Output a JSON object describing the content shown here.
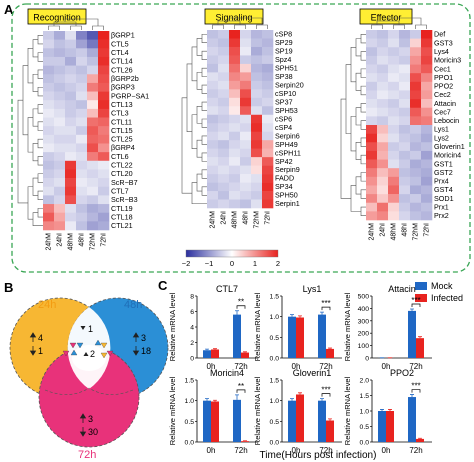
{
  "panel_labels": {
    "a": "A",
    "b": "B",
    "c": "C"
  },
  "heatmaps": {
    "conditions": [
      "24hM",
      "24hI",
      "48hM",
      "48hI",
      "72hM",
      "72hI"
    ],
    "recognition": {
      "title": "Recognition",
      "genes": [
        "βGRP1",
        "CTL5",
        "CTL4",
        "CTL14",
        "CTL26",
        "βGRP2b",
        "βGRP3",
        "PGRP−SA1",
        "CTL13",
        "CTL3",
        "CTL11",
        "CTL15",
        "CTL25",
        "βGRP4",
        "CTL6",
        "CTL22",
        "CTL20",
        "ScR−B7",
        "CTL7",
        "ScR−B3",
        "CTL19",
        "CTL18",
        "CTL21"
      ],
      "values": [
        [
          -0.5,
          -0.8,
          -0.3,
          -1.2,
          -1.6,
          2.0
        ],
        [
          -0.4,
          -0.6,
          -0.5,
          -0.9,
          -1.3,
          1.9
        ],
        [
          -0.6,
          -0.7,
          -0.6,
          -0.5,
          -0.8,
          1.8
        ],
        [
          -0.5,
          -0.5,
          -0.8,
          -0.4,
          -0.6,
          1.9
        ],
        [
          -0.7,
          -0.6,
          -0.5,
          -0.6,
          -0.4,
          1.7
        ],
        [
          -0.6,
          -0.5,
          -0.4,
          -0.5,
          0.8,
          1.6
        ],
        [
          -0.5,
          -0.6,
          -0.5,
          -0.4,
          1.2,
          1.5
        ],
        [
          -0.4,
          -0.5,
          -0.6,
          -0.3,
          0.6,
          1.8
        ],
        [
          -0.3,
          -0.4,
          -0.5,
          -0.6,
          0.2,
          1.9
        ],
        [
          -0.2,
          -0.3,
          -0.5,
          -0.4,
          0.6,
          1.7
        ],
        [
          -0.3,
          -0.2,
          -0.4,
          -0.3,
          1.3,
          1.4
        ],
        [
          -0.4,
          -0.3,
          -0.3,
          -0.5,
          1.5,
          1.2
        ],
        [
          -0.3,
          -0.4,
          -0.4,
          -0.2,
          1.4,
          1.3
        ],
        [
          -0.2,
          -0.3,
          -0.3,
          -0.4,
          1.6,
          1.0
        ],
        [
          -0.5,
          -0.4,
          -0.2,
          -0.3,
          1.2,
          1.5
        ],
        [
          -0.6,
          -0.5,
          1.8,
          -0.4,
          -0.3,
          -0.2
        ],
        [
          -0.5,
          -0.4,
          1.9,
          -0.3,
          -0.4,
          -0.3
        ],
        [
          -0.4,
          -0.3,
          1.7,
          -0.2,
          -0.3,
          -0.4
        ],
        [
          -0.3,
          -0.5,
          1.8,
          -0.3,
          -0.2,
          -0.5
        ],
        [
          -0.6,
          -0.4,
          1.6,
          -0.4,
          -0.5,
          -0.3
        ],
        [
          1.2,
          0.6,
          -0.3,
          -0.6,
          -0.8,
          -0.7
        ],
        [
          1.5,
          0.8,
          -0.4,
          -0.5,
          -0.7,
          -0.9
        ],
        [
          1.1,
          1.0,
          -0.2,
          -0.6,
          -0.9,
          -0.8
        ]
      ]
    },
    "signaling": {
      "title": "Signaling",
      "genes": [
        "cSP8",
        "SP29",
        "SP19",
        "Spz4",
        "SPH51",
        "SP38",
        "Serpin20",
        "cSP10",
        "SP37",
        "SPH53",
        "cSP6",
        "cSP4",
        "Serpin6",
        "SPH49",
        "cSPH11",
        "SP42",
        "Serpin9",
        "FADD",
        "SP34",
        "SPH50",
        "Serpin1"
      ],
      "values": [
        [
          -0.6,
          -0.5,
          2.0,
          -0.4,
          -0.7,
          -0.6
        ],
        [
          -0.5,
          -0.6,
          1.8,
          -0.3,
          -0.6,
          -0.7
        ],
        [
          -0.4,
          -0.5,
          1.6,
          -0.2,
          -0.8,
          -0.6
        ],
        [
          -0.5,
          -0.4,
          1.5,
          -0.5,
          -0.6,
          -0.5
        ],
        [
          -0.6,
          -0.3,
          1.3,
          0.4,
          -0.7,
          -0.8
        ],
        [
          -0.3,
          -0.4,
          1.1,
          0.9,
          -0.6,
          -0.7
        ],
        [
          -0.4,
          -0.3,
          0.9,
          1.2,
          -0.5,
          -0.6
        ],
        [
          -0.5,
          -0.4,
          0.6,
          1.6,
          -0.4,
          -0.5
        ],
        [
          -0.4,
          -0.5,
          0.3,
          1.8,
          -0.5,
          -0.4
        ],
        [
          -0.3,
          -0.4,
          0.2,
          1.5,
          -0.3,
          -0.6
        ],
        [
          -0.6,
          -0.5,
          -0.4,
          -0.3,
          1.8,
          -0.2
        ],
        [
          -0.5,
          -0.4,
          -0.3,
          -0.4,
          1.9,
          -0.3
        ],
        [
          -0.4,
          -0.3,
          -0.5,
          -0.2,
          1.7,
          -0.4
        ],
        [
          -0.5,
          -0.6,
          -0.4,
          -0.3,
          1.8,
          0.8
        ],
        [
          -0.4,
          -0.5,
          -0.3,
          -0.4,
          1.6,
          0.7
        ],
        [
          -0.3,
          -0.4,
          -0.2,
          -0.5,
          0.4,
          1.5
        ],
        [
          -0.4,
          -0.3,
          -0.4,
          -0.3,
          0.3,
          1.7
        ],
        [
          -0.5,
          -0.4,
          -0.5,
          -0.2,
          -0.3,
          1.8
        ],
        [
          -0.6,
          -0.5,
          -0.4,
          -0.3,
          -0.4,
          1.9
        ],
        [
          -0.4,
          -0.6,
          -0.3,
          -0.4,
          -0.5,
          1.7
        ],
        [
          -0.5,
          -0.4,
          -0.5,
          -0.6,
          -0.3,
          1.8
        ]
      ]
    },
    "effector": {
      "title": "Effector",
      "genes": [
        "Def",
        "GST3",
        "Lys4",
        "Moricin3",
        "Cec1",
        "PPO1",
        "PPO2",
        "Cec2",
        "Attacin",
        "Cec7",
        "Lebocin",
        "Lys1",
        "Lys2",
        "Gloverin1",
        "Moricin4",
        "GST1",
        "GST2",
        "Prx4",
        "GST4",
        "SOD1",
        "Prx1",
        "Prx2"
      ],
      "values": [
        [
          -0.5,
          -0.6,
          -0.4,
          -0.7,
          -0.5,
          2.0
        ],
        [
          -0.4,
          -0.5,
          -0.3,
          -0.6,
          0.4,
          1.8
        ],
        [
          -0.6,
          -0.4,
          -0.5,
          -0.4,
          0.8,
          1.6
        ],
        [
          -0.5,
          -0.3,
          -0.4,
          -0.5,
          1.0,
          1.7
        ],
        [
          -0.4,
          -0.5,
          -0.3,
          -0.2,
          1.2,
          1.5
        ],
        [
          -0.3,
          -0.4,
          -0.2,
          -0.3,
          1.6,
          1.1
        ],
        [
          -0.5,
          -0.3,
          -0.4,
          -0.2,
          1.8,
          0.8
        ],
        [
          -0.4,
          -0.2,
          -0.3,
          -0.4,
          1.7,
          0.9
        ],
        [
          -0.3,
          -0.4,
          -0.5,
          -0.3,
          1.9,
          0.6
        ],
        [
          -0.2,
          -0.3,
          -0.4,
          -0.5,
          1.5,
          1.0
        ],
        [
          -0.4,
          -0.5,
          -0.3,
          -0.4,
          1.3,
          1.2
        ],
        [
          1.7,
          0.6,
          -0.4,
          -0.6,
          -0.5,
          -0.7
        ],
        [
          1.9,
          0.4,
          -0.3,
          -0.5,
          -0.6,
          -0.8
        ],
        [
          1.6,
          0.8,
          -0.5,
          -0.4,
          -0.7,
          -0.6
        ],
        [
          1.8,
          0.7,
          -0.4,
          -0.6,
          -0.5,
          -0.9
        ],
        [
          1.5,
          1.0,
          -0.3,
          -0.5,
          -0.8,
          -0.7
        ],
        [
          1.2,
          0.6,
          0.9,
          -0.6,
          -0.7,
          -0.8
        ],
        [
          1.0,
          0.4,
          1.2,
          -0.5,
          -0.6,
          -0.9
        ],
        [
          0.8,
          0.3,
          1.4,
          -0.4,
          -0.8,
          -0.7
        ],
        [
          1.1,
          0.5,
          1.0,
          -0.6,
          -0.5,
          -0.8
        ],
        [
          0.6,
          1.3,
          0.4,
          -0.5,
          -0.7,
          -0.6
        ],
        [
          0.9,
          1.1,
          0.3,
          -0.4,
          -0.6,
          -0.7
        ]
      ]
    },
    "colorbar": {
      "ticks": [
        "−2",
        "−1",
        "0",
        "1",
        "2"
      ],
      "low_color": "#2b2f9e",
      "mid_color": "#ffffff",
      "high_color": "#e8231f"
    }
  },
  "venn": {
    "sets": [
      {
        "label": "24h",
        "color": "#f7b733",
        "text_color": "#f39c12"
      },
      {
        "label": "48h",
        "color": "#2b8fd6",
        "text_color": "#1f6fb8"
      },
      {
        "label": "72h",
        "color": "#e8327a",
        "text_color": "#e8327a"
      }
    ],
    "counts": {
      "only_24h": {
        "up": "4",
        "down": "1"
      },
      "only_48h": {
        "up": "3",
        "down": "18"
      },
      "only_72h": {
        "up": "3",
        "down": "30"
      },
      "h24_h48": "1",
      "center": "2"
    }
  },
  "qpcr": {
    "ylabel": "Relative mRNA level",
    "xlabel": "Time(Hours post infection)",
    "legend": [
      {
        "label": "Mock",
        "color": "#1f67c4"
      },
      {
        "label": "Infected",
        "color": "#e8231f"
      }
    ],
    "time_labels": [
      "0h",
      "72h"
    ],
    "panels": [
      {
        "gene": "CTL7",
        "ymax": 8,
        "ticks": [
          "0",
          "2",
          "4",
          "6",
          "8"
        ],
        "mock": [
          1.0,
          5.6
        ],
        "mock_err": [
          0.15,
          0.5
        ],
        "infected": [
          1.1,
          0.7
        ],
        "infected_err": [
          0.1,
          0.1
        ],
        "sig": "**"
      },
      {
        "gene": "Lys1",
        "ymax": 1.5,
        "ticks": [
          "0.0",
          "0.5",
          "1.0",
          "1.5"
        ],
        "mock": [
          1.0,
          1.05
        ],
        "mock_err": [
          0.05,
          0.06
        ],
        "infected": [
          0.98,
          0.22
        ],
        "infected_err": [
          0.04,
          0.02
        ],
        "sig": "***"
      },
      {
        "gene": "Attacin",
        "ymax": 500,
        "ticks": [
          "0",
          "100",
          "200",
          "300",
          "400",
          "500"
        ],
        "mock": [
          1.0,
          380
        ],
        "mock_err": [
          0.5,
          15
        ],
        "infected": [
          1.0,
          160
        ],
        "infected_err": [
          0.5,
          12
        ],
        "sig": "***"
      },
      {
        "gene": "Moricin4",
        "ymax": 1.5,
        "ticks": [
          "0.0",
          "0.5",
          "1.0",
          "1.5"
        ],
        "mock": [
          1.0,
          1.02
        ],
        "mock_err": [
          0.05,
          0.12
        ],
        "infected": [
          0.98,
          0.02
        ],
        "infected_err": [
          0.03,
          0.01
        ],
        "sig": "**"
      },
      {
        "gene": "Gloverin1",
        "ymax": 1.5,
        "ticks": [
          "0.0",
          "0.5",
          "1.0",
          "1.5"
        ],
        "mock": [
          1.0,
          1.0
        ],
        "mock_err": [
          0.05,
          0.05
        ],
        "infected": [
          1.15,
          0.52
        ],
        "infected_err": [
          0.04,
          0.04
        ],
        "sig": "***"
      },
      {
        "gene": "PPO2",
        "ymax": 2.0,
        "ticks": [
          "0.0",
          "0.5",
          "1.0",
          "1.5",
          "2.0"
        ],
        "mock": [
          1.0,
          1.45
        ],
        "mock_err": [
          0.05,
          0.08
        ],
        "infected": [
          1.0,
          0.1
        ],
        "infected_err": [
          0.05,
          0.02
        ],
        "sig": "***"
      }
    ]
  }
}
